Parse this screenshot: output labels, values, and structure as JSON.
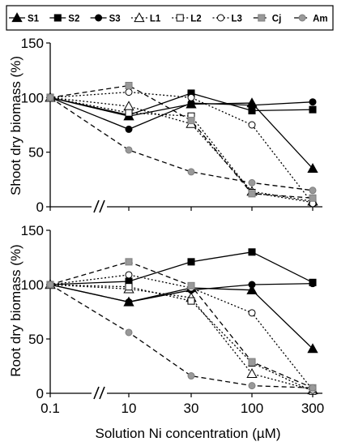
{
  "chart_data": [
    {
      "type": "line",
      "ylabel": "Shoot dry biomass (%)",
      "xlabel": "",
      "ylim": [
        0,
        150
      ],
      "yticks": [
        "0",
        "50",
        "100",
        "150"
      ],
      "x": [
        "0.1",
        "10",
        "30",
        "100",
        "300"
      ],
      "series": [
        {
          "name": "S1",
          "values": [
            100,
            83,
            94,
            95,
            35
          ]
        },
        {
          "name": "S2",
          "values": [
            100,
            84,
            104,
            88,
            89
          ]
        },
        {
          "name": "S3",
          "values": [
            100,
            71,
            95,
            93,
            96
          ]
        },
        {
          "name": "L1",
          "values": [
            100,
            92,
            76,
            14,
            5
          ]
        },
        {
          "name": "L2",
          "values": [
            100,
            86,
            83,
            13,
            4
          ]
        },
        {
          "name": "L3",
          "values": [
            100,
            105,
            100,
            75,
            3
          ]
        },
        {
          "name": "Cj",
          "values": [
            100,
            111,
            79,
            12,
            8
          ]
        },
        {
          "name": "Am",
          "values": [
            100,
            52,
            32,
            22,
            15
          ]
        }
      ]
    },
    {
      "type": "line",
      "ylabel": "Root dry biomass (%)",
      "xlabel": "Solution Ni concentration (µM)",
      "ylim": [
        0,
        150
      ],
      "yticks": [
        "0",
        "50",
        "100",
        "150"
      ],
      "x": [
        "0.1",
        "10",
        "30",
        "100",
        "300"
      ],
      "series": [
        {
          "name": "S1",
          "values": [
            100,
            84,
            97,
            95,
            41
          ]
        },
        {
          "name": "S2",
          "values": [
            100,
            103,
            121,
            130,
            102
          ]
        },
        {
          "name": "S3",
          "values": [
            100,
            84,
            95,
            100,
            101
          ]
        },
        {
          "name": "L1",
          "values": [
            100,
            96,
            88,
            18,
            3
          ]
        },
        {
          "name": "L2",
          "values": [
            100,
            98,
            85,
            28,
            2
          ]
        },
        {
          "name": "L3",
          "values": [
            100,
            109,
            97,
            74,
            3
          ]
        },
        {
          "name": "Cj",
          "values": [
            100,
            121,
            99,
            29,
            5
          ]
        },
        {
          "name": "Am",
          "values": [
            100,
            56,
            16,
            7,
            5
          ]
        }
      ]
    }
  ],
  "legend": {
    "items": [
      {
        "name": "S1",
        "marker": "triangle",
        "fill": "#000000",
        "dash": "solid"
      },
      {
        "name": "S2",
        "marker": "square",
        "fill": "#000000",
        "dash": "solid"
      },
      {
        "name": "S3",
        "marker": "circle",
        "fill": "#000000",
        "dash": "solid"
      },
      {
        "name": "L1",
        "marker": "triangle",
        "fill": "#ffffff",
        "dash": "dotted"
      },
      {
        "name": "L2",
        "marker": "square",
        "fill": "#ffffff",
        "dash": "dotted"
      },
      {
        "name": "L3",
        "marker": "circle",
        "fill": "#ffffff",
        "dash": "dotted"
      },
      {
        "name": "Cj",
        "marker": "square",
        "fill": "#999999",
        "dash": "dashed"
      },
      {
        "name": "Am",
        "marker": "circle",
        "fill": "#999999",
        "dash": "dashed"
      }
    ]
  },
  "axis_break_symbol": "//"
}
